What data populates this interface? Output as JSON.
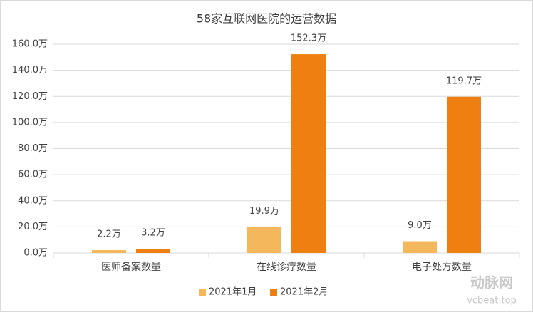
{
  "chart_data": {
    "type": "bar",
    "title": "58家互联网医院的运营数据",
    "categories": [
      "医师备案数量",
      "在线诊疗数量",
      "电子处方数量"
    ],
    "series": [
      {
        "name": "2021年1月",
        "color": "#F5B75C",
        "values": [
          2.2,
          19.9,
          9.0
        ],
        "value_labels": [
          "2.2万",
          "19.9万",
          "9.0万"
        ]
      },
      {
        "name": "2021年2月",
        "color": "#EE7F10",
        "values": [
          3.2,
          152.3,
          119.7
        ],
        "value_labels": [
          "3.2万",
          "152.3万",
          "119.7万"
        ]
      }
    ],
    "ylim": [
      0,
      160
    ],
    "yticks": [
      {
        "value": 0,
        "label": "0.0万"
      },
      {
        "value": 20,
        "label": "20.0万"
      },
      {
        "value": 40,
        "label": "40.0万"
      },
      {
        "value": 60,
        "label": "60.0万"
      },
      {
        "value": 80,
        "label": "80.0万"
      },
      {
        "value": 100,
        "label": "100.0万"
      },
      {
        "value": 120,
        "label": "120.0万"
      },
      {
        "value": 140,
        "label": "140.0万"
      },
      {
        "value": 160,
        "label": "160.0万"
      }
    ],
    "grid": true,
    "legend": "bottom",
    "watermark": [
      "动脉网",
      "vcbeat.top"
    ]
  }
}
